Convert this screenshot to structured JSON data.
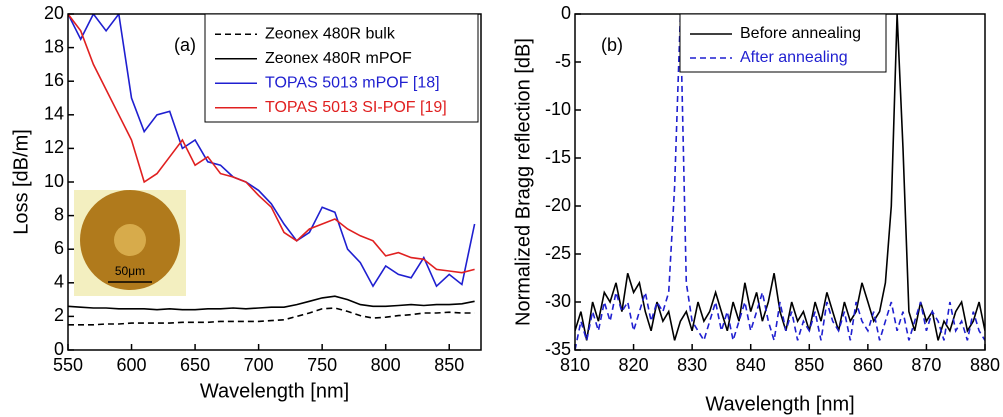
{
  "chart_data": [
    {
      "type": "line",
      "annotations": [
        "(a)",
        "50μm"
      ],
      "xlabel": "Wavelength [nm]",
      "ylabel": "Loss [dB/m]",
      "xlim": [
        550,
        875
      ],
      "ylim": [
        0,
        20
      ],
      "xticks": [
        550,
        600,
        650,
        700,
        750,
        800,
        850
      ],
      "yticks": [
        0,
        2,
        4,
        6,
        8,
        10,
        12,
        14,
        16,
        18,
        20
      ],
      "legend": "upper right",
      "x": [
        550,
        560,
        570,
        580,
        590,
        600,
        610,
        620,
        630,
        640,
        650,
        660,
        670,
        680,
        690,
        700,
        710,
        720,
        730,
        740,
        750,
        760,
        770,
        780,
        790,
        800,
        810,
        820,
        830,
        840,
        850,
        860,
        870
      ],
      "series": [
        {
          "name": "Zeonex 480R bulk",
          "color": "#000000",
          "dash": true,
          "values": [
            1.5,
            1.5,
            1.5,
            1.55,
            1.55,
            1.6,
            1.6,
            1.6,
            1.6,
            1.65,
            1.65,
            1.65,
            1.7,
            1.7,
            1.7,
            1.7,
            1.75,
            1.8,
            2.0,
            2.2,
            2.45,
            2.5,
            2.3,
            2.05,
            1.9,
            1.95,
            2.05,
            2.1,
            2.2,
            2.2,
            2.25,
            2.2,
            2.2
          ]
        },
        {
          "name": "Zeonex 480R mPOF",
          "color": "#000000",
          "dash": false,
          "values": [
            2.6,
            2.55,
            2.5,
            2.5,
            2.45,
            2.45,
            2.45,
            2.4,
            2.45,
            2.4,
            2.4,
            2.45,
            2.45,
            2.5,
            2.45,
            2.5,
            2.55,
            2.55,
            2.7,
            2.9,
            3.1,
            3.2,
            3.0,
            2.7,
            2.6,
            2.6,
            2.65,
            2.7,
            2.65,
            2.7,
            2.7,
            2.75,
            2.9
          ]
        },
        {
          "name": "TOPAS 5013 mPOF [18]",
          "color": "#1f1fd0",
          "dash": false,
          "values": [
            20,
            18.5,
            20,
            19,
            20,
            15,
            13,
            14,
            14.2,
            12,
            12.5,
            11.2,
            11,
            10.3,
            10,
            9.5,
            8.7,
            7.5,
            6.5,
            7,
            8.5,
            8.2,
            6,
            5.2,
            3.8,
            5,
            4.5,
            4.3,
            5.5,
            3.8,
            4.5,
            3.9,
            7.5
          ]
        },
        {
          "name": "TOPAS 5013 SI-POF [19]",
          "color": "#e02020",
          "dash": false,
          "values": [
            20,
            19,
            17,
            15.5,
            14,
            12.5,
            10,
            10.5,
            11.5,
            12.5,
            11,
            11.5,
            10.5,
            10.3,
            10,
            9.2,
            8.5,
            7,
            6.5,
            7.2,
            7.5,
            7.8,
            7.2,
            6.8,
            6.5,
            5.6,
            5.8,
            5.5,
            5.4,
            4.8,
            4.7,
            4.6,
            4.8
          ]
        }
      ]
    },
    {
      "type": "line",
      "annotations": [
        "(b)"
      ],
      "xlabel": "Wavelength [nm]",
      "ylabel": "Normalized Bragg reflection [dB]",
      "xlim": [
        810,
        880
      ],
      "ylim": [
        -35,
        0
      ],
      "xticks": [
        810,
        820,
        830,
        840,
        850,
        860,
        870,
        880
      ],
      "yticks": [
        -35,
        -30,
        -25,
        -20,
        -15,
        -10,
        -5,
        0
      ],
      "legend": "upper left",
      "x": [
        810,
        811,
        812,
        813,
        814,
        815,
        816,
        817,
        818,
        819,
        820,
        821,
        822,
        823,
        824,
        825,
        826,
        827,
        828,
        829,
        830,
        831,
        832,
        833,
        834,
        835,
        836,
        837,
        838,
        839,
        840,
        841,
        842,
        843,
        844,
        845,
        846,
        847,
        848,
        849,
        850,
        851,
        852,
        853,
        854,
        855,
        856,
        857,
        858,
        859,
        860,
        861,
        862,
        863,
        864,
        865,
        866,
        867,
        868,
        869,
        870,
        871,
        872,
        873,
        874,
        875,
        876,
        877,
        878,
        879,
        880
      ],
      "series": [
        {
          "name": "Before annealing",
          "color": "#000000",
          "dash": false,
          "values": [
            -33,
            -31,
            -34,
            -30,
            -32,
            -29,
            -30,
            -28,
            -31,
            -27,
            -29,
            -28,
            -31,
            -33,
            -30,
            -32,
            -31,
            -34,
            -32,
            -31,
            -33,
            -30,
            -32,
            -31,
            -29,
            -31,
            -33,
            -30,
            -32,
            -28,
            -31,
            -29,
            -32,
            -30,
            -27,
            -31,
            -33,
            -30,
            -32,
            -31,
            -33,
            -30,
            -32,
            -29,
            -31,
            -33,
            -30,
            -32,
            -31,
            -28,
            -30,
            -32,
            -31,
            -28,
            -20,
            0,
            -14,
            -31,
            -33,
            -30,
            -32,
            -31,
            -34,
            -32,
            -33,
            -31,
            -30,
            -33,
            -32,
            -30,
            -33
          ]
        },
        {
          "name": "After annealing",
          "color": "#1f1fd0",
          "dash": true,
          "values": [
            -35,
            -32,
            -34,
            -31,
            -33,
            -30,
            -32,
            -29,
            -31,
            -30,
            -33,
            -31,
            -29,
            -32,
            -30,
            -31,
            -29,
            -18,
            0,
            -28,
            -32,
            -33,
            -34,
            -32,
            -30,
            -33,
            -31,
            -34,
            -32,
            -30,
            -33,
            -31,
            -29,
            -32,
            -34,
            -30,
            -33,
            -31,
            -34,
            -32,
            -33,
            -31,
            -34,
            -30,
            -32,
            -33,
            -31,
            -34,
            -30,
            -32,
            -33,
            -31,
            -34,
            -32,
            -30,
            -33,
            -31,
            -34,
            -32,
            -30,
            -33,
            -31,
            -32,
            -34,
            -30,
            -33,
            -32,
            -34,
            -31,
            -33,
            -34
          ]
        }
      ]
    }
  ]
}
